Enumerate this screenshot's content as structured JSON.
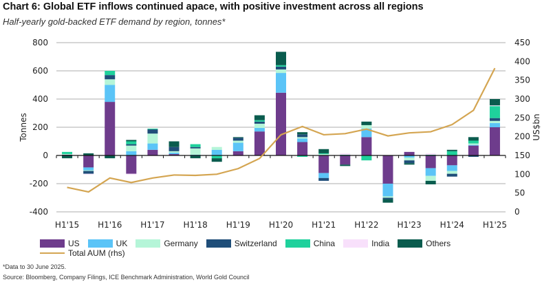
{
  "chart_data": {
    "type": "bar",
    "title": "Chart 6: Global ETF inflows continued apace, with positive investment across all regions",
    "subtitle": "Half-yearly gold-backed ETF demand by region, tonnes*",
    "ylabel": "Tonnes",
    "y2label": "US$bn",
    "ylim": [
      -400,
      800
    ],
    "y2lim": [
      0,
      450
    ],
    "yticks": [
      "-400",
      "-200",
      "0",
      "200",
      "400",
      "600",
      "800"
    ],
    "y2ticks": [
      "0",
      "50",
      "100",
      "150",
      "200",
      "250",
      "300",
      "350",
      "400",
      "450"
    ],
    "categories": [
      "H1'15",
      "H2'15",
      "H1'16",
      "H2'16",
      "H1'17",
      "H2'17",
      "H1'18",
      "H2'18",
      "H1'19",
      "H2'19",
      "H1'20",
      "H2'20",
      "H1'21",
      "H2'21",
      "H1'22",
      "H2'22",
      "H1'23",
      "H2'23",
      "H1'24",
      "H2'24",
      "H1'25"
    ],
    "xlabels": [
      "H1'15",
      "H1'16",
      "H1'17",
      "H1'18",
      "H1'19",
      "H1'20",
      "H1'21",
      "H1'22",
      "H1'23",
      "H1'24",
      "H1'25"
    ],
    "series": [
      {
        "name": "US",
        "color": "#6e3c8c",
        "values": [
          5,
          -85,
          380,
          -130,
          40,
          10,
          0,
          0,
          30,
          170,
          445,
          95,
          -125,
          -65,
          130,
          -200,
          25,
          -90,
          -70,
          70,
          200
        ]
      },
      {
        "name": "UK",
        "color": "#5bc4f7",
        "values": [
          0,
          -20,
          120,
          30,
          45,
          10,
          5,
          40,
          60,
          25,
          140,
          25,
          -35,
          0,
          60,
          -90,
          -15,
          -55,
          -40,
          5,
          30
        ]
      },
      {
        "name": "Germany",
        "color": "#b5f5d8",
        "values": [
          5,
          -5,
          40,
          40,
          70,
          10,
          45,
          20,
          15,
          30,
          25,
          10,
          10,
          0,
          25,
          -10,
          -20,
          -35,
          -20,
          10,
          15
        ]
      },
      {
        "name": "Switzerland",
        "color": "#1f4e79",
        "values": [
          0,
          -20,
          30,
          10,
          30,
          30,
          10,
          0,
          20,
          15,
          20,
          20,
          -20,
          0,
          0,
          -10,
          -20,
          0,
          -20,
          -10,
          20
        ]
      },
      {
        "name": "China",
        "color": "#1fd19c",
        "values": [
          15,
          0,
          30,
          20,
          5,
          0,
          20,
          -20,
          0,
          10,
          10,
          -10,
          5,
          5,
          -35,
          0,
          0,
          5,
          30,
          20,
          85
        ]
      },
      {
        "name": "India",
        "color": "#f8e0fb",
        "values": [
          0,
          -5,
          0,
          -5,
          -5,
          0,
          0,
          0,
          -5,
          0,
          0,
          0,
          0,
          10,
          0,
          0,
          0,
          10,
          0,
          0,
          5
        ]
      },
      {
        "name": "Others",
        "color": "#0a5c4e",
        "values": [
          -20,
          15,
          -20,
          10,
          0,
          40,
          -20,
          -25,
          5,
          35,
          95,
          15,
          30,
          -10,
          25,
          -25,
          -10,
          -25,
          10,
          25,
          45
        ]
      }
    ],
    "line": {
      "name": "Total AUM (rhs)",
      "color": "#d4a551",
      "values": [
        65,
        53,
        90,
        78,
        90,
        98,
        97,
        100,
        115,
        142,
        205,
        227,
        205,
        208,
        220,
        202,
        210,
        213,
        232,
        270,
        382
      ]
    }
  },
  "footnotes": [
    "*Data to 30 June 2025.",
    "Source: Bloomberg, Company Filings, ICE Benchmark Administration, World Gold Council"
  ]
}
